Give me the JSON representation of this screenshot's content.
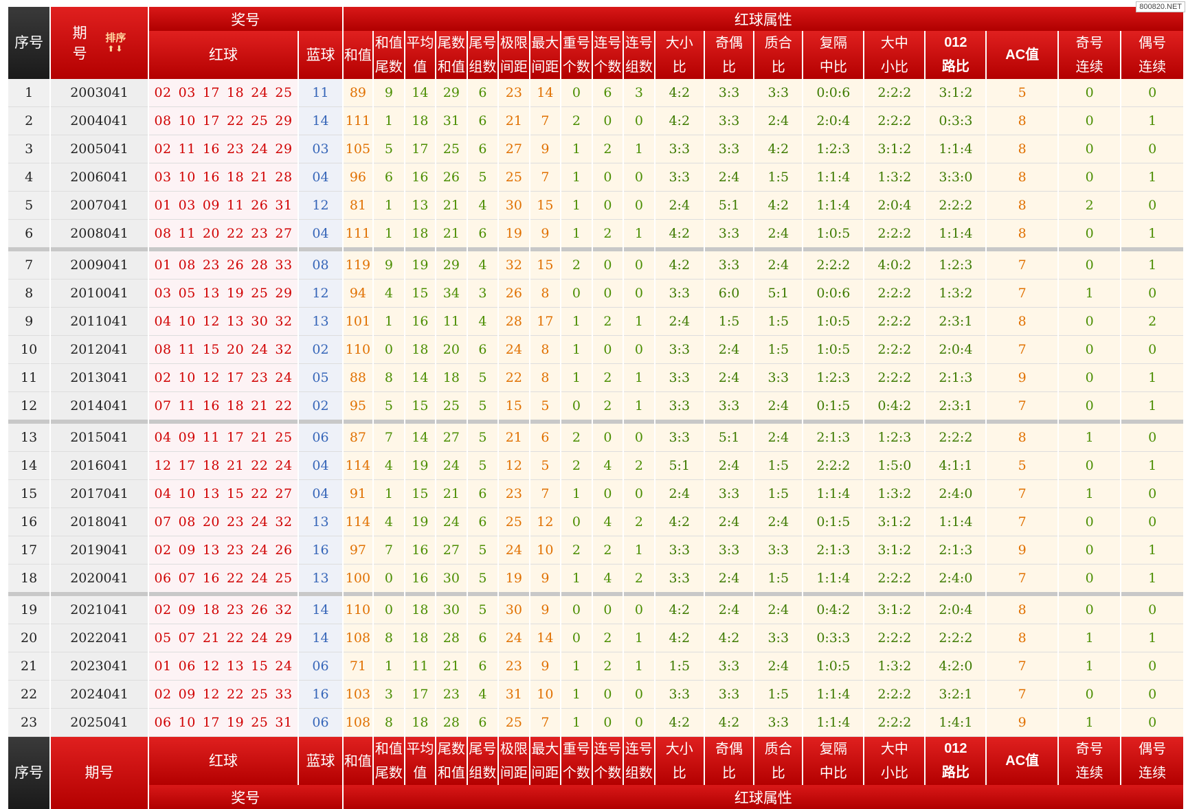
{
  "watermark": "800820.NET",
  "header": {
    "seq": "序号",
    "issue_line1": "期",
    "issue_line2": "号",
    "issue_footer": "期号",
    "sort_label": "排序",
    "sort_arrows": "⬆⬇",
    "prize_group": "奖号",
    "attr_group": "红球属性",
    "red": "红球",
    "blue": "蓝球",
    "attr_cols": [
      {
        "l1": "和值",
        "l2": ""
      },
      {
        "l1": "和值",
        "l2": "尾数"
      },
      {
        "l1": "平均",
        "l2": "值"
      },
      {
        "l1": "尾数",
        "l2": "和值"
      },
      {
        "l1": "尾号",
        "l2": "组数"
      },
      {
        "l1": "极限",
        "l2": "间距"
      },
      {
        "l1": "最大",
        "l2": "间距"
      },
      {
        "l1": "重号",
        "l2": "个数"
      },
      {
        "l1": "连号",
        "l2": "个数"
      },
      {
        "l1": "连号",
        "l2": "组数"
      },
      {
        "l1": "大小",
        "l2": "比"
      },
      {
        "l1": "奇偶",
        "l2": "比"
      },
      {
        "l1": "质合",
        "l2": "比"
      },
      {
        "l1": "复隔",
        "l2": "中比"
      },
      {
        "l1": "大中",
        "l2": "小比"
      },
      {
        "l1": "012",
        "l2": "路比"
      },
      {
        "l1": "AC值",
        "l2": ""
      },
      {
        "l1": "奇号",
        "l2": "连续"
      },
      {
        "l1": "偶号",
        "l2": "连续"
      }
    ]
  },
  "rows": [
    {
      "seq": "1",
      "issue": "2003041",
      "red": [
        "02",
        "03",
        "17",
        "18",
        "24",
        "25"
      ],
      "blue": "11",
      "attrs": [
        "89",
        "9",
        "14",
        "29",
        "6",
        "23",
        "14",
        "0",
        "6",
        "3",
        "4:2",
        "3:3",
        "3:3",
        "0:0:6",
        "2:2:2",
        "3:1:2",
        "5",
        "0",
        "0"
      ]
    },
    {
      "seq": "2",
      "issue": "2004041",
      "red": [
        "08",
        "10",
        "17",
        "22",
        "25",
        "29"
      ],
      "blue": "14",
      "attrs": [
        "111",
        "1",
        "18",
        "31",
        "6",
        "21",
        "7",
        "2",
        "0",
        "0",
        "4:2",
        "3:3",
        "2:4",
        "2:0:4",
        "2:2:2",
        "0:3:3",
        "8",
        "0",
        "1"
      ]
    },
    {
      "seq": "3",
      "issue": "2005041",
      "red": [
        "02",
        "11",
        "16",
        "23",
        "24",
        "29"
      ],
      "blue": "03",
      "attrs": [
        "105",
        "5",
        "17",
        "25",
        "6",
        "27",
        "9",
        "1",
        "2",
        "1",
        "3:3",
        "3:3",
        "4:2",
        "1:2:3",
        "3:1:2",
        "1:1:4",
        "8",
        "0",
        "0"
      ]
    },
    {
      "seq": "4",
      "issue": "2006041",
      "red": [
        "03",
        "10",
        "16",
        "18",
        "21",
        "28"
      ],
      "blue": "04",
      "attrs": [
        "96",
        "6",
        "16",
        "26",
        "5",
        "25",
        "7",
        "1",
        "0",
        "0",
        "3:3",
        "2:4",
        "1:5",
        "1:1:4",
        "1:3:2",
        "3:3:0",
        "8",
        "0",
        "1"
      ]
    },
    {
      "seq": "5",
      "issue": "2007041",
      "red": [
        "01",
        "03",
        "09",
        "11",
        "26",
        "31"
      ],
      "blue": "12",
      "attrs": [
        "81",
        "1",
        "13",
        "21",
        "4",
        "30",
        "15",
        "1",
        "0",
        "0",
        "2:4",
        "5:1",
        "4:2",
        "1:1:4",
        "2:0:4",
        "2:2:2",
        "8",
        "2",
        "0"
      ]
    },
    {
      "seq": "6",
      "issue": "2008041",
      "red": [
        "08",
        "11",
        "20",
        "22",
        "23",
        "27"
      ],
      "blue": "04",
      "attrs": [
        "111",
        "1",
        "18",
        "21",
        "6",
        "19",
        "9",
        "1",
        "2",
        "1",
        "4:2",
        "3:3",
        "2:4",
        "1:0:5",
        "2:2:2",
        "1:1:4",
        "8",
        "0",
        "1"
      ]
    },
    {
      "seq": "7",
      "issue": "2009041",
      "red": [
        "01",
        "08",
        "23",
        "26",
        "28",
        "33"
      ],
      "blue": "08",
      "attrs": [
        "119",
        "9",
        "19",
        "29",
        "4",
        "32",
        "15",
        "2",
        "0",
        "0",
        "4:2",
        "3:3",
        "2:4",
        "2:2:2",
        "4:0:2",
        "1:2:3",
        "7",
        "0",
        "1"
      ]
    },
    {
      "seq": "8",
      "issue": "2010041",
      "red": [
        "03",
        "05",
        "13",
        "19",
        "25",
        "29"
      ],
      "blue": "12",
      "attrs": [
        "94",
        "4",
        "15",
        "34",
        "3",
        "26",
        "8",
        "0",
        "0",
        "0",
        "3:3",
        "6:0",
        "5:1",
        "0:0:6",
        "2:2:2",
        "1:3:2",
        "7",
        "1",
        "0"
      ]
    },
    {
      "seq": "9",
      "issue": "2011041",
      "red": [
        "04",
        "10",
        "12",
        "13",
        "30",
        "32"
      ],
      "blue": "13",
      "attrs": [
        "101",
        "1",
        "16",
        "11",
        "4",
        "28",
        "17",
        "1",
        "2",
        "1",
        "2:4",
        "1:5",
        "1:5",
        "1:0:5",
        "2:2:2",
        "2:3:1",
        "8",
        "0",
        "2"
      ]
    },
    {
      "seq": "10",
      "issue": "2012041",
      "red": [
        "08",
        "11",
        "15",
        "20",
        "24",
        "32"
      ],
      "blue": "02",
      "attrs": [
        "110",
        "0",
        "18",
        "20",
        "6",
        "24",
        "8",
        "1",
        "0",
        "0",
        "3:3",
        "2:4",
        "1:5",
        "1:0:5",
        "2:2:2",
        "2:0:4",
        "7",
        "0",
        "0"
      ]
    },
    {
      "seq": "11",
      "issue": "2013041",
      "red": [
        "02",
        "10",
        "12",
        "17",
        "23",
        "24"
      ],
      "blue": "05",
      "attrs": [
        "88",
        "8",
        "14",
        "18",
        "5",
        "22",
        "8",
        "1",
        "2",
        "1",
        "3:3",
        "2:4",
        "3:3",
        "1:2:3",
        "2:2:2",
        "2:1:3",
        "9",
        "0",
        "1"
      ]
    },
    {
      "seq": "12",
      "issue": "2014041",
      "red": [
        "07",
        "11",
        "16",
        "18",
        "21",
        "22"
      ],
      "blue": "02",
      "attrs": [
        "95",
        "5",
        "15",
        "25",
        "5",
        "15",
        "5",
        "0",
        "2",
        "1",
        "3:3",
        "3:3",
        "2:4",
        "0:1:5",
        "0:4:2",
        "2:3:1",
        "7",
        "0",
        "1"
      ]
    },
    {
      "seq": "13",
      "issue": "2015041",
      "red": [
        "04",
        "09",
        "11",
        "17",
        "21",
        "25"
      ],
      "blue": "06",
      "attrs": [
        "87",
        "7",
        "14",
        "27",
        "5",
        "21",
        "6",
        "2",
        "0",
        "0",
        "3:3",
        "5:1",
        "2:4",
        "2:1:3",
        "1:2:3",
        "2:2:2",
        "8",
        "1",
        "0"
      ]
    },
    {
      "seq": "14",
      "issue": "2016041",
      "red": [
        "12",
        "17",
        "18",
        "21",
        "22",
        "24"
      ],
      "blue": "04",
      "attrs": [
        "114",
        "4",
        "19",
        "24",
        "5",
        "12",
        "5",
        "2",
        "4",
        "2",
        "5:1",
        "2:4",
        "1:5",
        "2:2:2",
        "1:5:0",
        "4:1:1",
        "5",
        "0",
        "1"
      ]
    },
    {
      "seq": "15",
      "issue": "2017041",
      "red": [
        "04",
        "10",
        "13",
        "15",
        "22",
        "27"
      ],
      "blue": "04",
      "attrs": [
        "91",
        "1",
        "15",
        "21",
        "6",
        "23",
        "7",
        "1",
        "0",
        "0",
        "2:4",
        "3:3",
        "1:5",
        "1:1:4",
        "1:3:2",
        "2:4:0",
        "7",
        "1",
        "0"
      ]
    },
    {
      "seq": "16",
      "issue": "2018041",
      "red": [
        "07",
        "08",
        "20",
        "23",
        "24",
        "32"
      ],
      "blue": "13",
      "attrs": [
        "114",
        "4",
        "19",
        "24",
        "6",
        "25",
        "12",
        "0",
        "4",
        "2",
        "4:2",
        "2:4",
        "2:4",
        "0:1:5",
        "3:1:2",
        "1:1:4",
        "7",
        "0",
        "0"
      ]
    },
    {
      "seq": "17",
      "issue": "2019041",
      "red": [
        "02",
        "09",
        "13",
        "23",
        "24",
        "26"
      ],
      "blue": "16",
      "attrs": [
        "97",
        "7",
        "16",
        "27",
        "5",
        "24",
        "10",
        "2",
        "2",
        "1",
        "3:3",
        "3:3",
        "3:3",
        "2:1:3",
        "3:1:2",
        "2:1:3",
        "9",
        "0",
        "1"
      ]
    },
    {
      "seq": "18",
      "issue": "2020041",
      "red": [
        "06",
        "07",
        "16",
        "22",
        "24",
        "25"
      ],
      "blue": "13",
      "attrs": [
        "100",
        "0",
        "16",
        "30",
        "5",
        "19",
        "9",
        "1",
        "4",
        "2",
        "3:3",
        "2:4",
        "1:5",
        "1:1:4",
        "2:2:2",
        "2:4:0",
        "7",
        "0",
        "1"
      ]
    },
    {
      "seq": "19",
      "issue": "2021041",
      "red": [
        "02",
        "09",
        "18",
        "23",
        "26",
        "32"
      ],
      "blue": "14",
      "attrs": [
        "110",
        "0",
        "18",
        "30",
        "5",
        "30",
        "9",
        "0",
        "0",
        "0",
        "4:2",
        "2:4",
        "2:4",
        "0:4:2",
        "3:1:2",
        "2:0:4",
        "8",
        "0",
        "0"
      ]
    },
    {
      "seq": "20",
      "issue": "2022041",
      "red": [
        "05",
        "07",
        "21",
        "22",
        "24",
        "29"
      ],
      "blue": "14",
      "attrs": [
        "108",
        "8",
        "18",
        "28",
        "6",
        "24",
        "14",
        "0",
        "2",
        "1",
        "4:2",
        "4:2",
        "3:3",
        "0:3:3",
        "2:2:2",
        "2:2:2",
        "8",
        "1",
        "1"
      ]
    },
    {
      "seq": "21",
      "issue": "2023041",
      "red": [
        "01",
        "06",
        "12",
        "13",
        "15",
        "24"
      ],
      "blue": "06",
      "attrs": [
        "71",
        "1",
        "11",
        "21",
        "6",
        "23",
        "9",
        "1",
        "2",
        "1",
        "1:5",
        "3:3",
        "2:4",
        "1:0:5",
        "1:3:2",
        "4:2:0",
        "7",
        "1",
        "0"
      ]
    },
    {
      "seq": "22",
      "issue": "2024041",
      "red": [
        "02",
        "09",
        "12",
        "22",
        "25",
        "33"
      ],
      "blue": "16",
      "attrs": [
        "103",
        "3",
        "17",
        "23",
        "4",
        "31",
        "10",
        "1",
        "0",
        "0",
        "3:3",
        "3:3",
        "1:5",
        "1:1:4",
        "2:2:2",
        "3:2:1",
        "7",
        "0",
        "0"
      ]
    },
    {
      "seq": "23",
      "issue": "2025041",
      "red": [
        "06",
        "10",
        "17",
        "19",
        "25",
        "31"
      ],
      "blue": "06",
      "attrs": [
        "108",
        "8",
        "18",
        "28",
        "6",
        "25",
        "7",
        "1",
        "0",
        "0",
        "4:2",
        "4:2",
        "3:3",
        "1:1:4",
        "2:2:2",
        "1:4:1",
        "9",
        "1",
        "0"
      ]
    }
  ]
}
